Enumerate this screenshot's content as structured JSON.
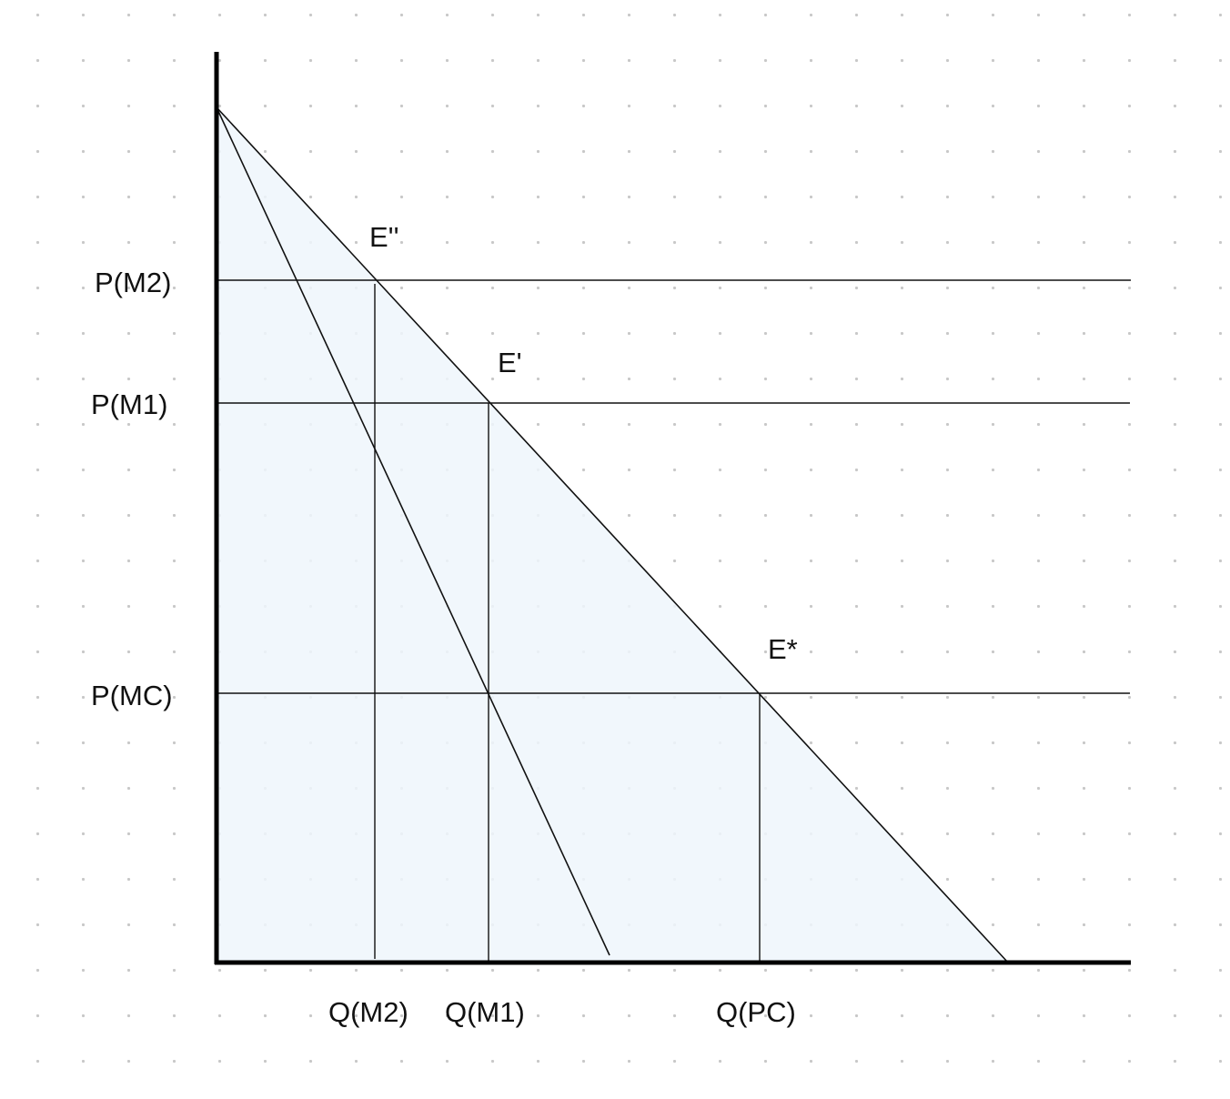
{
  "diagram": {
    "price_labels": {
      "p_m2": "P(M2)",
      "p_m1": "P(M1)",
      "p_mc": "P(MC)"
    },
    "quantity_labels": {
      "q_m2": "Q(M2)",
      "q_m1": "Q(M1)",
      "q_pc": "Q(PC)"
    },
    "point_labels": {
      "e_double_prime": "E''",
      "e_prime": "E'",
      "e_star": "E*"
    },
    "colors": {
      "background": "#ffffff",
      "grid_dot": "#c8c8c8",
      "region_fill": "#eef6fc",
      "line": "#111111",
      "axis": "#000000"
    }
  }
}
